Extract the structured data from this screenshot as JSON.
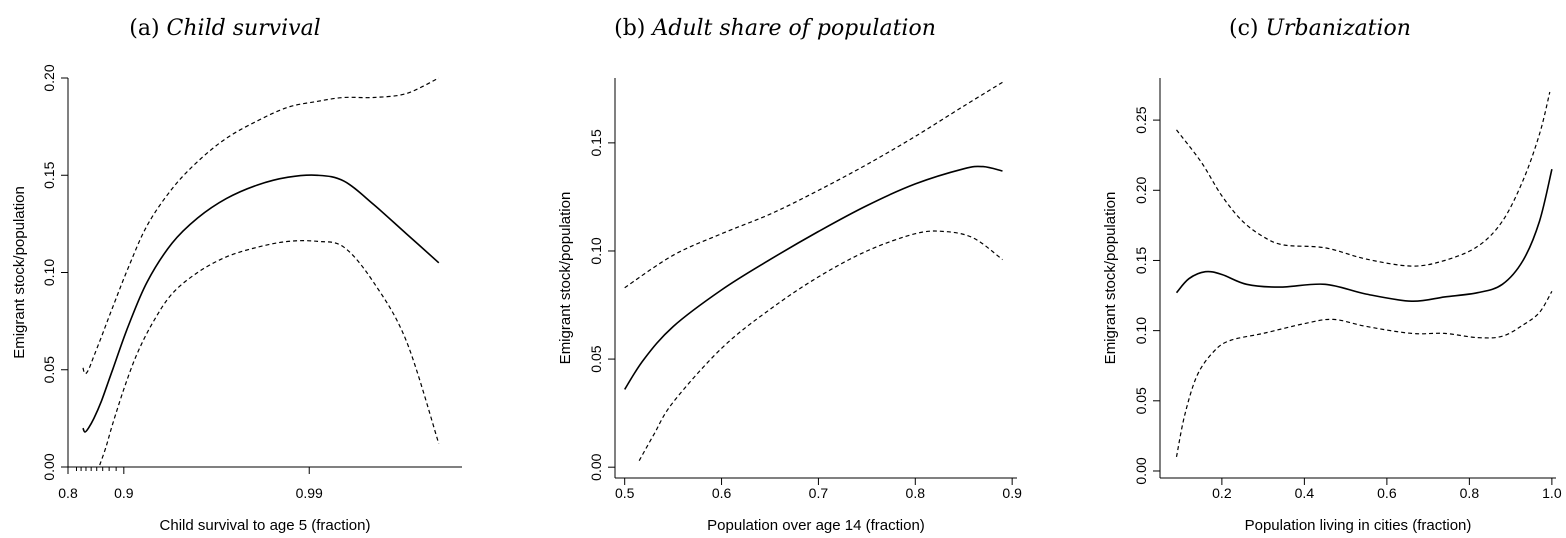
{
  "chart_data": [
    {
      "type": "line",
      "panel_label": "(a)",
      "title": "Child survival",
      "xlabel": "Child survival to age 5 (fraction)",
      "ylabel": "Emigrant stock/population",
      "x_scale": "log-of-mortality",
      "xlim": [
        0.8,
        0.9985
      ],
      "ylim": [
        0.0,
        0.2
      ],
      "xticks": [
        {
          "value": 0.8,
          "label": "0.8"
        },
        {
          "value": 0.9,
          "label": "0.9"
        },
        {
          "value": 0.99,
          "label": "0.99"
        }
      ],
      "x_minor_ticks": [
        0.82,
        0.83,
        0.84,
        0.85,
        0.86,
        0.87,
        0.88,
        0.89
      ],
      "yticks": [
        {
          "value": 0.0,
          "label": "0.00"
        },
        {
          "value": 0.05,
          "label": "0.05"
        },
        {
          "value": 0.1,
          "label": "0.10"
        },
        {
          "value": 0.15,
          "label": "0.15"
        },
        {
          "value": 0.2,
          "label": "0.20"
        }
      ],
      "grid": false,
      "series": [
        {
          "role": "estimate",
          "style": "solid",
          "x": [
            0.834,
            0.838,
            0.845,
            0.855,
            0.868,
            0.885,
            0.905,
            0.925,
            0.945,
            0.96,
            0.972,
            0.981,
            0.987,
            0.991,
            0.9935,
            0.9955,
            0.997,
            0.998
          ],
          "y": [
            0.02,
            0.018,
            0.02,
            0.025,
            0.034,
            0.05,
            0.072,
            0.095,
            0.115,
            0.128,
            0.138,
            0.145,
            0.149,
            0.15,
            0.147,
            0.135,
            0.12,
            0.105
          ]
        },
        {
          "role": "upper",
          "style": "dashed",
          "x": [
            0.834,
            0.838,
            0.845,
            0.855,
            0.868,
            0.885,
            0.905,
            0.925,
            0.945,
            0.96,
            0.972,
            0.981,
            0.987,
            0.991,
            0.9935,
            0.9955,
            0.997,
            0.998
          ],
          "y": [
            0.051,
            0.048,
            0.05,
            0.057,
            0.067,
            0.082,
            0.102,
            0.124,
            0.143,
            0.157,
            0.169,
            0.178,
            0.185,
            0.188,
            0.19,
            0.19,
            0.192,
            0.2
          ]
        },
        {
          "role": "lower",
          "style": "dashed",
          "x": [
            0.865,
            0.875,
            0.885,
            0.9,
            0.915,
            0.93,
            0.945,
            0.96,
            0.972,
            0.981,
            0.987,
            0.991,
            0.9935,
            0.9955,
            0.997,
            0.998
          ],
          "y": [
            0.001,
            0.01,
            0.022,
            0.04,
            0.058,
            0.074,
            0.089,
            0.1,
            0.108,
            0.113,
            0.116,
            0.116,
            0.113,
            0.095,
            0.065,
            0.012
          ]
        }
      ]
    },
    {
      "type": "line",
      "panel_label": "(b)",
      "title": "Adult share of population",
      "xlabel": "Population over age 14 (fraction)",
      "ylabel": "Emigrant stock/population",
      "x_scale": "linear",
      "xlim": [
        0.49,
        0.905
      ],
      "ylim": [
        -0.005,
        0.18
      ],
      "xticks": [
        {
          "value": 0.5,
          "label": "0.5"
        },
        {
          "value": 0.6,
          "label": "0.6"
        },
        {
          "value": 0.7,
          "label": "0.7"
        },
        {
          "value": 0.8,
          "label": "0.8"
        },
        {
          "value": 0.9,
          "label": "0.9"
        }
      ],
      "x_minor_ticks": [],
      "yticks": [
        {
          "value": 0.0,
          "label": "0.00"
        },
        {
          "value": 0.05,
          "label": "0.05"
        },
        {
          "value": 0.1,
          "label": "0.10"
        },
        {
          "value": 0.15,
          "label": "0.15"
        }
      ],
      "grid": false,
      "series": [
        {
          "role": "estimate",
          "style": "solid",
          "x": [
            0.5,
            0.52,
            0.55,
            0.6,
            0.65,
            0.7,
            0.75,
            0.8,
            0.85,
            0.87,
            0.89
          ],
          "y": [
            0.036,
            0.05,
            0.065,
            0.082,
            0.096,
            0.109,
            0.121,
            0.131,
            0.138,
            0.139,
            0.137
          ]
        },
        {
          "role": "upper",
          "style": "dashed",
          "x": [
            0.5,
            0.55,
            0.6,
            0.65,
            0.7,
            0.75,
            0.8,
            0.85,
            0.89
          ],
          "y": [
            0.083,
            0.098,
            0.108,
            0.117,
            0.128,
            0.14,
            0.153,
            0.167,
            0.178
          ]
        },
        {
          "role": "lower",
          "style": "dashed",
          "x": [
            0.515,
            0.53,
            0.55,
            0.6,
            0.65,
            0.7,
            0.75,
            0.8,
            0.83,
            0.86,
            0.89
          ],
          "y": [
            0.003,
            0.015,
            0.03,
            0.055,
            0.073,
            0.088,
            0.1,
            0.108,
            0.109,
            0.106,
            0.096
          ]
        }
      ]
    },
    {
      "type": "line",
      "panel_label": "(c)",
      "title": "Urbanization",
      "xlabel": "Population living in cities (fraction)",
      "ylabel": "Emigrant stock/population",
      "x_scale": "linear",
      "xlim": [
        0.05,
        1.01
      ],
      "ylim": [
        -0.005,
        0.28
      ],
      "xticks": [
        {
          "value": 0.2,
          "label": "0.2"
        },
        {
          "value": 0.4,
          "label": "0.4"
        },
        {
          "value": 0.6,
          "label": "0.6"
        },
        {
          "value": 0.8,
          "label": "0.8"
        },
        {
          "value": 1.0,
          "label": "1.0"
        }
      ],
      "x_minor_ticks": [],
      "yticks": [
        {
          "value": 0.0,
          "label": "0.00"
        },
        {
          "value": 0.05,
          "label": "0.05"
        },
        {
          "value": 0.1,
          "label": "0.10"
        },
        {
          "value": 0.15,
          "label": "0.15"
        },
        {
          "value": 0.2,
          "label": "0.20"
        },
        {
          "value": 0.25,
          "label": "0.25"
        }
      ],
      "grid": false,
      "series": [
        {
          "role": "estimate",
          "style": "solid",
          "x": [
            0.09,
            0.12,
            0.16,
            0.2,
            0.26,
            0.34,
            0.45,
            0.55,
            0.66,
            0.74,
            0.82,
            0.88,
            0.93,
            0.97,
            1.0
          ],
          "y": [
            0.127,
            0.137,
            0.142,
            0.14,
            0.133,
            0.131,
            0.133,
            0.126,
            0.121,
            0.124,
            0.127,
            0.133,
            0.15,
            0.178,
            0.215
          ]
        },
        {
          "role": "upper",
          "style": "dashed",
          "x": [
            0.09,
            0.15,
            0.2,
            0.25,
            0.3,
            0.35,
            0.45,
            0.55,
            0.66,
            0.74,
            0.82,
            0.88,
            0.93,
            0.97,
            0.995
          ],
          "y": [
            0.243,
            0.22,
            0.196,
            0.178,
            0.167,
            0.161,
            0.159,
            0.151,
            0.146,
            0.15,
            0.16,
            0.178,
            0.207,
            0.24,
            0.27
          ]
        },
        {
          "role": "lower",
          "style": "dashed",
          "x": [
            0.09,
            0.11,
            0.14,
            0.18,
            0.22,
            0.3,
            0.4,
            0.47,
            0.55,
            0.66,
            0.74,
            0.82,
            0.88,
            0.93,
            0.97,
            1.0
          ],
          "y": [
            0.01,
            0.04,
            0.068,
            0.085,
            0.093,
            0.098,
            0.105,
            0.108,
            0.103,
            0.098,
            0.098,
            0.095,
            0.096,
            0.104,
            0.113,
            0.128
          ]
        }
      ]
    }
  ]
}
